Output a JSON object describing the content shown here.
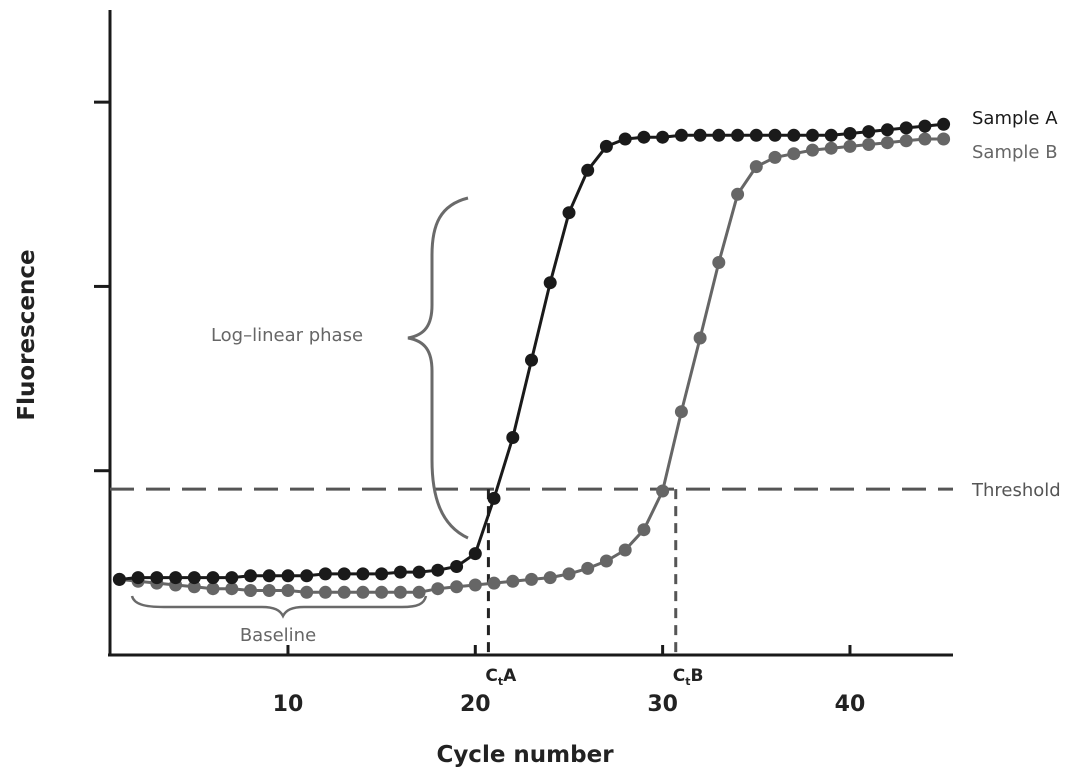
{
  "chart_data": {
    "type": "line",
    "ylabel": "Fluorescence",
    "xlabel": "Cycle number",
    "xlim": [
      0.5,
      45.5
    ],
    "ylim": [
      0,
      3.5
    ],
    "x_ticks": [
      10,
      20,
      30,
      40
    ],
    "y_ticks": [
      1,
      2,
      3
    ],
    "threshold": {
      "label": "Threshold",
      "y": 0.9
    },
    "annotations": {
      "log_linear": "Log–linear phase",
      "baseline": "Baseline",
      "ct_a": {
        "label": "C",
        "sub": "t",
        "suffix": "A",
        "x": 20.7
      },
      "ct_b": {
        "label": "C",
        "sub": "t",
        "suffix": "B",
        "x": 30.7
      }
    },
    "series": [
      {
        "name": "Sample A",
        "color": "#1a1a1a",
        "x": [
          1,
          2,
          3,
          4,
          5,
          6,
          7,
          8,
          9,
          10,
          11,
          12,
          13,
          14,
          15,
          16,
          17,
          18,
          19,
          20,
          21,
          22,
          23,
          24,
          25,
          26,
          27,
          28,
          29,
          30,
          31,
          32,
          33,
          34,
          35,
          36,
          37,
          38,
          39,
          40,
          41,
          42,
          43,
          44,
          45
        ],
        "y": [
          0.41,
          0.42,
          0.42,
          0.42,
          0.42,
          0.42,
          0.42,
          0.43,
          0.43,
          0.43,
          0.43,
          0.44,
          0.44,
          0.44,
          0.44,
          0.45,
          0.45,
          0.46,
          0.48,
          0.55,
          0.85,
          1.18,
          1.6,
          2.02,
          2.4,
          2.63,
          2.76,
          2.8,
          2.81,
          2.81,
          2.82,
          2.82,
          2.82,
          2.82,
          2.82,
          2.82,
          2.82,
          2.82,
          2.82,
          2.83,
          2.84,
          2.85,
          2.86,
          2.87,
          2.88
        ]
      },
      {
        "name": "Sample B",
        "color": "#666666",
        "x": [
          1,
          2,
          3,
          4,
          5,
          6,
          7,
          8,
          9,
          10,
          11,
          12,
          13,
          14,
          15,
          16,
          17,
          18,
          19,
          20,
          21,
          22,
          23,
          24,
          25,
          26,
          27,
          28,
          29,
          30,
          31,
          32,
          33,
          34,
          35,
          36,
          37,
          38,
          39,
          40,
          41,
          42,
          43,
          44,
          45
        ],
        "y": [
          0.41,
          0.4,
          0.39,
          0.38,
          0.37,
          0.36,
          0.36,
          0.35,
          0.35,
          0.35,
          0.34,
          0.34,
          0.34,
          0.34,
          0.34,
          0.34,
          0.34,
          0.36,
          0.37,
          0.38,
          0.39,
          0.4,
          0.41,
          0.42,
          0.44,
          0.47,
          0.51,
          0.57,
          0.68,
          0.89,
          1.32,
          1.72,
          2.13,
          2.5,
          2.65,
          2.7,
          2.72,
          2.74,
          2.75,
          2.76,
          2.77,
          2.78,
          2.79,
          2.8,
          2.8
        ]
      }
    ]
  }
}
